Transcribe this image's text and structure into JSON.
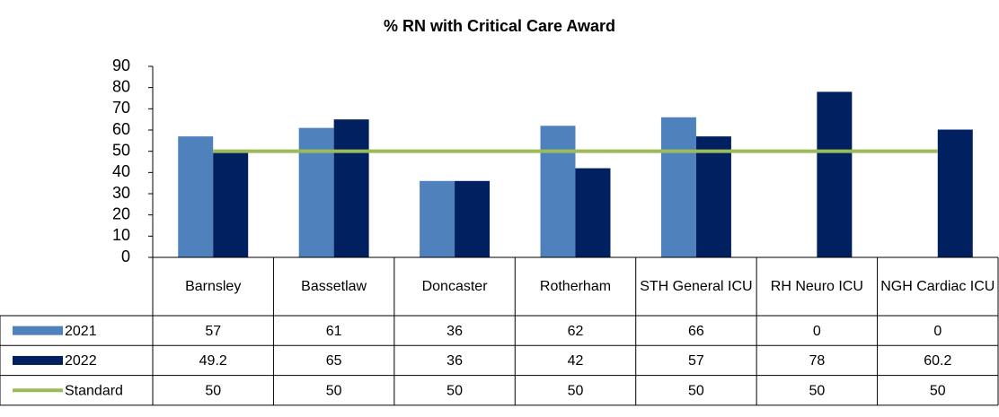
{
  "chart_data": {
    "type": "bar",
    "title": "% RN with Critical Care Award",
    "categories": [
      "Barnsley",
      "Bassetlaw",
      "Doncaster",
      "Rotherham",
      "STH General ICU",
      "RH Neuro ICU",
      "NGH Cardiac ICU"
    ],
    "series": [
      {
        "name": "2021",
        "color": "#4f81bd",
        "values": [
          57,
          61,
          36,
          62,
          66,
          0,
          0
        ]
      },
      {
        "name": "2022",
        "color": "#002060",
        "values": [
          49.2,
          65,
          36,
          42,
          57,
          78,
          60.2
        ]
      },
      {
        "name": "Standard",
        "type": "line",
        "color": "#9bbb59",
        "values": [
          50,
          50,
          50,
          50,
          50,
          50,
          50
        ]
      }
    ],
    "ylim": [
      0,
      90
    ],
    "yticks": [
      0,
      10,
      20,
      30,
      40,
      50,
      60,
      70,
      80,
      90
    ],
    "grid": false
  }
}
